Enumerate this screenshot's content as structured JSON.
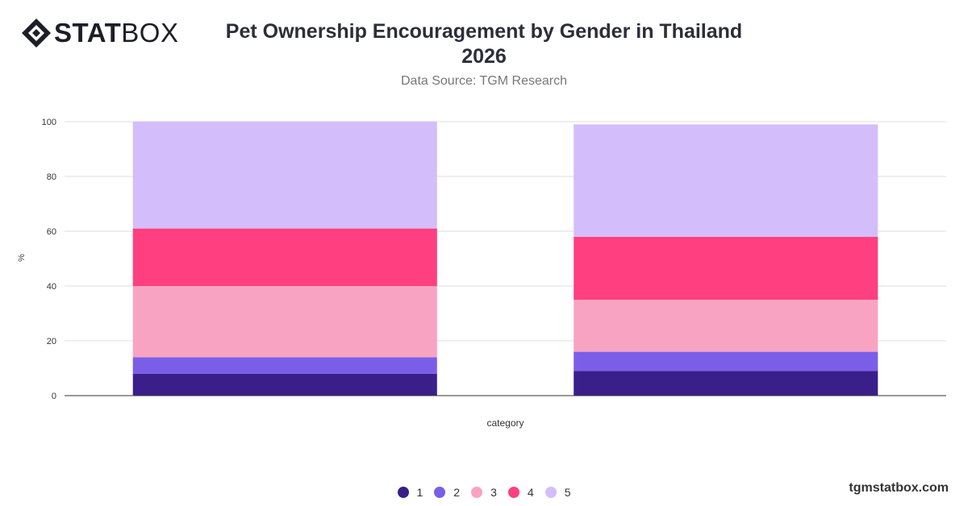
{
  "brand": {
    "name_bold": "STAT",
    "name_light": "BOX",
    "footer": "tgmstatbox.com"
  },
  "header": {
    "title_line1": "Pet Ownership Encouragement by Gender in Thailand",
    "title_line2": "2026",
    "subtitle": "Data Source: TGM Research"
  },
  "chart_data": {
    "type": "bar",
    "stacked": true,
    "title": "Pet Ownership Encouragement by Gender in Thailand 2026",
    "subtitle": "Data Source: TGM Research",
    "xlabel": "category",
    "ylabel": "%",
    "ylim": [
      0,
      100
    ],
    "yticks": [
      0,
      20,
      40,
      60,
      80,
      100
    ],
    "grid": true,
    "categories": [
      "",
      ""
    ],
    "series": [
      {
        "name": "1",
        "color": "#3a1f8a",
        "values": [
          8,
          9
        ]
      },
      {
        "name": "2",
        "color": "#7b5ee8",
        "values": [
          6,
          7
        ]
      },
      {
        "name": "3",
        "color": "#f9a3c3",
        "values": [
          26,
          19
        ]
      },
      {
        "name": "4",
        "color": "#ff3f7f",
        "values": [
          21,
          23
        ]
      },
      {
        "name": "5",
        "color": "#d4bdfb",
        "values": [
          39,
          41
        ]
      }
    ],
    "legend_position": "bottom"
  }
}
